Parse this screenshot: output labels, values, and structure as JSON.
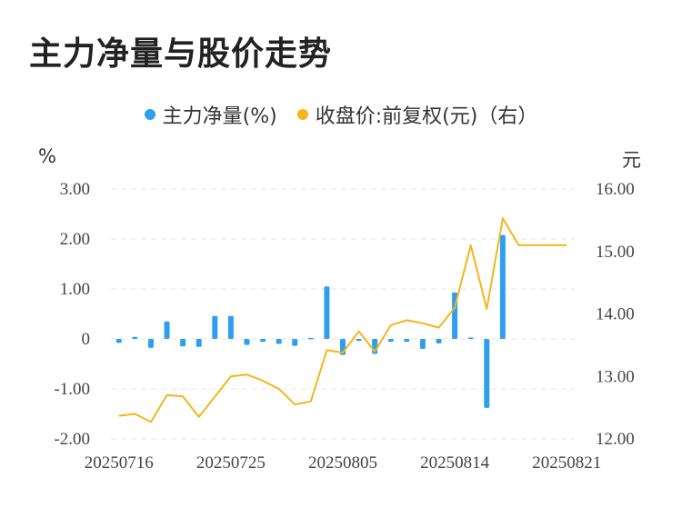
{
  "title": "主力净量与股价走势",
  "colors": {
    "bar": "#2e9ff0",
    "line": "#f5b51b",
    "grid": "#e3e3e3"
  },
  "chart_data": {
    "type": "bar+line",
    "legend": [
      {
        "label": "主力净量(%)",
        "color": "#2e9ff0"
      },
      {
        "label": "收盘价:前复权(元)（右）",
        "color": "#f5b51b"
      }
    ],
    "left_unit": "%",
    "right_unit": "元",
    "left_ticks": [
      "3.00",
      "2.00",
      "1.00",
      "0",
      "-1.00",
      "-2.00"
    ],
    "right_ticks": [
      "16.00",
      "15.00",
      "14.00",
      "13.00",
      "12.00"
    ],
    "x_tick_labels": [
      "20250716",
      "20250725",
      "20250805",
      "20250814",
      "20250821"
    ],
    "x_tick_index": [
      0,
      7,
      14,
      21,
      28
    ],
    "ylim_left": [
      -2,
      3
    ],
    "ylim_right": [
      12,
      16
    ],
    "bars": [
      -0.08,
      0.04,
      -0.18,
      0.35,
      -0.15,
      -0.16,
      0.46,
      0.46,
      -0.12,
      -0.06,
      -0.1,
      -0.14,
      0.02,
      1.05,
      -0.32,
      -0.04,
      -0.3,
      -0.06,
      -0.06,
      -0.2,
      -0.09,
      0.93,
      0.03,
      -1.38,
      2.08,
      0.0,
      0.0,
      0.0,
      0.0
    ],
    "prices": [
      12.37,
      12.4,
      12.27,
      12.7,
      12.68,
      12.35,
      null,
      13.0,
      13.03,
      12.93,
      12.8,
      12.55,
      12.6,
      13.42,
      13.38,
      13.72,
      13.4,
      13.82,
      13.9,
      13.85,
      13.78,
      14.1,
      15.1,
      14.08,
      15.53,
      15.1,
      15.1,
      15.1,
      15.1
    ]
  }
}
